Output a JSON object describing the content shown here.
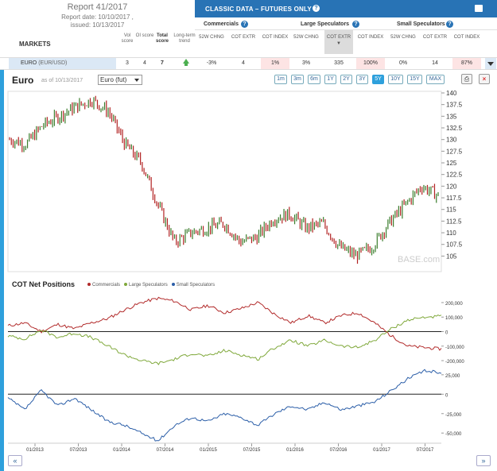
{
  "report": {
    "title": "Report 41/2017",
    "date_line": "Report date: 10/10/2017 ,",
    "issued_line": "issued: 10/13/2017"
  },
  "markets_label": "MARKETS",
  "score_headers": {
    "vol": "Vol score",
    "oi": "OI score",
    "total": "Total score",
    "trend": "Long-term trend"
  },
  "classic_title": "CLASSIC DATA – FUTURES ONLY",
  "groups": {
    "commercials": "Commercials",
    "large": "Large Speculators",
    "small": "Small Speculators"
  },
  "subheads": {
    "chng": "52W CHNG",
    "extr": "COT EXTR",
    "index": "COT INDEX"
  },
  "row": {
    "market": "EURO",
    "pair": "(EUR/USD)",
    "vol": "3",
    "oi": "4",
    "total": "7",
    "comm_chng": "-3%",
    "comm_extr": "4",
    "comm_index": "1%",
    "large_chng": "3%",
    "large_extr": "335",
    "large_index": "100%",
    "small_chng": "0%",
    "small_extr": "14",
    "small_index": "87%"
  },
  "chart_header": {
    "title": "Euro",
    "asof": "as of 10/13/2017",
    "contract": "Euro (fut)",
    "ranges": [
      "1m",
      "3m",
      "6m",
      "1Y",
      "2Y",
      "3Y",
      "5Y",
      "10Y",
      "15Y",
      "MAX"
    ],
    "active_range": "5Y"
  },
  "cot_title": "COT Net Positions",
  "legend": [
    "Commercials",
    "Large Speculators",
    "Small Speculators"
  ],
  "watermark": "BASE.com",
  "colors": {
    "commercials": "#b22b2b",
    "large": "#7fa83a",
    "small": "#2b5ea8",
    "accent": "#2873b5"
  },
  "nav": {
    "prev": "«",
    "next": "»"
  },
  "chart_data": [
    {
      "type": "ohlc",
      "title": "Euro",
      "x": [
        "01/2013",
        "04/2013",
        "07/2013",
        "10/2013",
        "01/2014",
        "04/2014",
        "07/2014",
        "09/2014",
        "11/2014",
        "01/2015",
        "03/2015",
        "05/2015",
        "07/2015",
        "09/2015",
        "11/2015",
        "01/2016",
        "03/2016",
        "05/2016",
        "07/2016",
        "09/2016",
        "11/2016",
        "01/2017",
        "03/2017",
        "05/2017",
        "07/2017",
        "09/2017",
        "10/2017"
      ],
      "values": [
        130,
        129,
        133,
        135,
        137,
        138.5,
        136,
        129,
        125,
        116,
        108,
        110,
        111,
        112,
        108,
        109,
        113,
        114,
        111,
        112,
        107,
        105,
        107,
        112,
        116,
        120,
        118
      ],
      "ylim": [
        102,
        140
      ],
      "yticks": [
        105,
        107.5,
        110,
        112.5,
        115,
        117.5,
        120,
        122.5,
        125,
        127.5,
        130,
        132.5,
        135,
        137.5,
        140
      ],
      "ytick_labels": [
        "105",
        "107.5",
        "110",
        "112.5",
        "115",
        "117.5",
        "120",
        "122.5",
        "125",
        "127.5",
        "130",
        "132.5",
        "135",
        "137.5",
        "140"
      ]
    },
    {
      "type": "line",
      "title": "COT Net Positions",
      "x": [
        "01/2013",
        "04/2013",
        "07/2013",
        "10/2013",
        "01/2014",
        "04/2014",
        "07/2014",
        "09/2014",
        "11/2014",
        "01/2015",
        "03/2015",
        "05/2015",
        "07/2015",
        "09/2015",
        "11/2015",
        "01/2016",
        "03/2016",
        "05/2016",
        "07/2016",
        "09/2016",
        "11/2016",
        "01/2017",
        "03/2017",
        "05/2017",
        "07/2017",
        "09/2017",
        "10/2017"
      ],
      "series": [
        {
          "name": "Commercials",
          "values": [
            40000,
            60000,
            0,
            50000,
            20000,
            60000,
            90000,
            150000,
            200000,
            230000,
            210000,
            150000,
            180000,
            130000,
            160000,
            200000,
            120000,
            60000,
            110000,
            60000,
            110000,
            130000,
            60000,
            -30000,
            -100000,
            -110000,
            -120000
          ]
        },
        {
          "name": "Large Speculators",
          "values": [
            -30000,
            -50000,
            10000,
            -40000,
            -10000,
            -40000,
            -100000,
            -160000,
            -200000,
            -220000,
            -190000,
            -150000,
            -170000,
            -130000,
            -160000,
            -190000,
            -110000,
            -60000,
            -100000,
            -60000,
            -100000,
            -110000,
            -60000,
            20000,
            80000,
            100000,
            105000
          ]
        },
        {
          "name": "Small Speculators",
          "values": [
            -5000,
            -20000,
            5000,
            -15000,
            -5000,
            -20000,
            -35000,
            -40000,
            -50000,
            -60000,
            -40000,
            -30000,
            -35000,
            -25000,
            -30000,
            -40000,
            -25000,
            -15000,
            -20000,
            -10000,
            -20000,
            -15000,
            -10000,
            5000,
            20000,
            30000,
            28000
          ]
        }
      ],
      "yticks_top": [
        -200000,
        -100000,
        0,
        100000,
        200000
      ],
      "ytick_labels_top": [
        "-200,000",
        "-100,000",
        "0",
        "100,000",
        "200,000"
      ],
      "yticks_bottom": [
        -50000,
        -25000,
        0,
        25000
      ],
      "ytick_labels_bottom": [
        "-50,000",
        "-25,000",
        "0",
        "25,000"
      ],
      "xtick_labels": [
        "01/2013",
        "07/2013",
        "01/2014",
        "07/2014",
        "01/2015",
        "07/2015",
        "01/2016",
        "07/2016",
        "01/2017",
        "07/2017"
      ]
    }
  ]
}
